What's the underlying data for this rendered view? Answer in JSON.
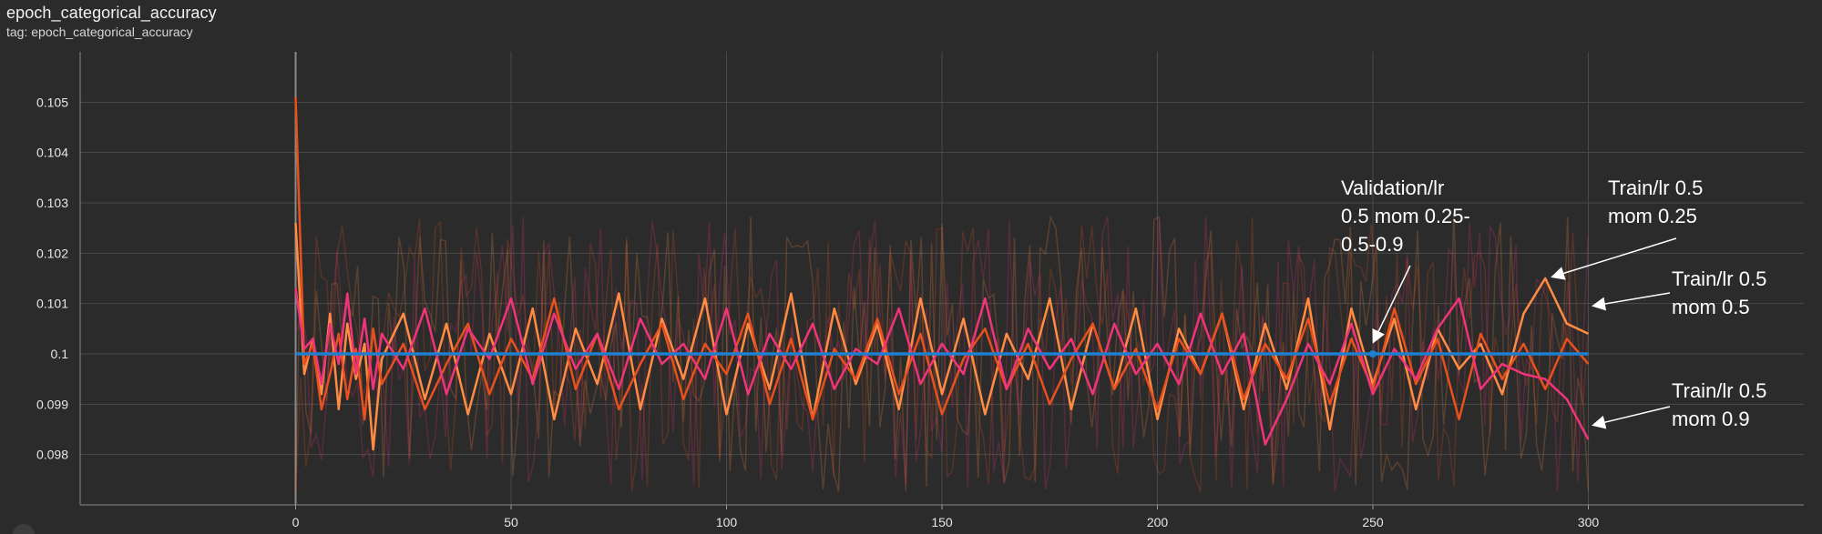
{
  "card": {
    "title": "epoch_categorical_accuracy",
    "tag": "tag: epoch_categorical_accuracy"
  },
  "chart_data": {
    "type": "line",
    "title": "epoch_categorical_accuracy",
    "xlabel": "",
    "ylabel": "",
    "xlim": [
      -50,
      350
    ],
    "ylim": [
      0.097,
      0.106
    ],
    "x_ticks": [
      0,
      50,
      100,
      150,
      200,
      250,
      300
    ],
    "x_tick_labels": [
      "0",
      "50",
      "100",
      "150",
      "200",
      "250",
      "300"
    ],
    "y_ticks": [
      0.098,
      0.099,
      0.1,
      0.101,
      0.102,
      0.103,
      0.104,
      0.105
    ],
    "y_tick_labels": [
      "0.098",
      "0.099",
      "0.1",
      "0.101",
      "0.102",
      "0.103",
      "0.104",
      "0.105"
    ],
    "grid": true,
    "background": "#2b2b2b",
    "grid_color": "#4a4a4a",
    "series": [
      {
        "color": "#ff8c42",
        "x": [
          0,
          2,
          4,
          6,
          8,
          10,
          12,
          14,
          16,
          18,
          20,
          25,
          30,
          35,
          40,
          45,
          50,
          55,
          60,
          65,
          70,
          75,
          80,
          85,
          90,
          95,
          100,
          105,
          110,
          115,
          120,
          125,
          130,
          135,
          140,
          145,
          150,
          155,
          160,
          165,
          170,
          175,
          180,
          185,
          190,
          195,
          200,
          205,
          210,
          215,
          220,
          225,
          230,
          235,
          240,
          245,
          250,
          255,
          260,
          265,
          270,
          275,
          280,
          285,
          290,
          295,
          300
        ],
        "y": [
          0.1026,
          0.0996,
          0.1003,
          0.0992,
          0.1008,
          0.0989,
          0.1006,
          0.0995,
          0.1002,
          0.0981,
          0.0999,
          0.1008,
          0.0991,
          0.1006,
          0.0988,
          0.1004,
          0.0992,
          0.1009,
          0.0987,
          0.1005,
          0.0994,
          0.1012,
          0.0989,
          0.1007,
          0.0995,
          0.1011,
          0.0988,
          0.1006,
          0.0993,
          0.1012,
          0.0987,
          0.1009,
          0.0994,
          0.1006,
          0.0989,
          0.1011,
          0.0992,
          0.1007,
          0.0988,
          0.1004,
          0.0995,
          0.1011,
          0.0989,
          0.1006,
          0.0993,
          0.1009,
          0.0987,
          0.1005,
          0.0996,
          0.1008,
          0.0989,
          0.1006,
          0.0993,
          0.1011,
          0.0985,
          0.1009,
          0.0994,
          0.1007,
          0.0989,
          0.1005,
          0.0997,
          0.1002,
          0.0992,
          0.1008,
          0.1015,
          0.1006,
          0.1004
        ]
      },
      {
        "color": "#e8501e",
        "x": [
          0,
          2,
          4,
          6,
          8,
          10,
          12,
          14,
          16,
          18,
          20,
          25,
          30,
          35,
          40,
          45,
          50,
          55,
          60,
          65,
          70,
          75,
          80,
          85,
          90,
          95,
          100,
          105,
          110,
          115,
          120,
          125,
          130,
          135,
          140,
          145,
          150,
          155,
          160,
          165,
          170,
          175,
          180,
          185,
          190,
          195,
          200,
          205,
          210,
          215,
          220,
          225,
          230,
          235,
          240,
          245,
          250,
          255,
          260,
          265,
          270,
          275,
          280,
          285,
          290,
          295,
          300
        ],
        "y": [
          0.1051,
          0.0998,
          0.1002,
          0.0989,
          0.0996,
          0.1004,
          0.0991,
          0.1001,
          0.0987,
          0.1005,
          0.0994,
          0.1002,
          0.0989,
          0.0998,
          0.1006,
          0.0992,
          0.1003,
          0.0995,
          0.1011,
          0.0993,
          0.1004,
          0.0989,
          0.0998,
          0.1006,
          0.0991,
          0.1002,
          0.0996,
          0.1008,
          0.099,
          0.1003,
          0.0987,
          0.1001,
          0.0995,
          0.1007,
          0.0992,
          0.1004,
          0.0988,
          0.0999,
          0.1005,
          0.0993,
          0.1002,
          0.099,
          0.0999,
          0.1006,
          0.0993,
          0.1001,
          0.0989,
          0.1003,
          0.0996,
          0.1008,
          0.0991,
          0.1002,
          0.0995,
          0.1007,
          0.099,
          0.1003,
          0.0993,
          0.1009,
          0.0994,
          0.1003,
          0.0987,
          0.1004,
          0.0995,
          0.1002,
          0.0993,
          0.1003,
          0.0998
        ]
      },
      {
        "color": "#f0347a",
        "x": [
          0,
          2,
          4,
          6,
          8,
          10,
          12,
          14,
          16,
          18,
          20,
          25,
          30,
          35,
          40,
          45,
          50,
          55,
          60,
          65,
          70,
          75,
          80,
          85,
          90,
          95,
          100,
          105,
          110,
          115,
          120,
          125,
          130,
          135,
          140,
          145,
          150,
          155,
          160,
          165,
          170,
          175,
          180,
          185,
          190,
          195,
          200,
          205,
          210,
          215,
          220,
          225,
          230,
          235,
          240,
          245,
          250,
          255,
          260,
          265,
          270,
          275,
          280,
          285,
          290,
          295,
          300
        ],
        "y": [
          0.1013,
          0.1001,
          0.1003,
          0.0994,
          0.1006,
          0.0998,
          0.1012,
          0.0996,
          0.1007,
          0.0993,
          0.1004,
          0.0997,
          0.1009,
          0.0992,
          0.1005,
          0.0999,
          0.1011,
          0.0994,
          0.1008,
          0.0997,
          0.1004,
          0.0993,
          0.1007,
          0.0998,
          0.1002,
          0.0995,
          0.1009,
          0.0992,
          0.1004,
          0.0997,
          0.1006,
          0.0993,
          0.1001,
          0.0998,
          0.1009,
          0.0994,
          0.1002,
          0.0996,
          0.1011,
          0.0993,
          0.1005,
          0.0997,
          0.1003,
          0.0992,
          0.1006,
          0.0996,
          0.1002,
          0.0994,
          0.1008,
          0.0996,
          0.1004,
          0.0982,
          0.0991,
          0.1002,
          0.0994,
          0.1006,
          0.0992,
          0.1001,
          0.0995,
          0.1005,
          0.1011,
          0.0993,
          0.0998,
          0.0996,
          0.0995,
          0.0991,
          0.0983
        ]
      },
      {
        "color": "#1f7fcf",
        "x": [
          0,
          300
        ],
        "y": [
          0.1,
          0.1
        ]
      }
    ],
    "annotations": [
      {
        "lines": [
          "Validation/lr",
          "0.5 mom 0.25-",
          "0.5-0.9"
        ]
      },
      {
        "lines": [
          "Train/lr 0.5",
          "mom 0.25"
        ]
      },
      {
        "lines": [
          "Train/lr 0.5",
          "mom 0.5"
        ]
      },
      {
        "lines": [
          "Train/lr 0.5",
          "mom 0.9"
        ]
      }
    ]
  }
}
